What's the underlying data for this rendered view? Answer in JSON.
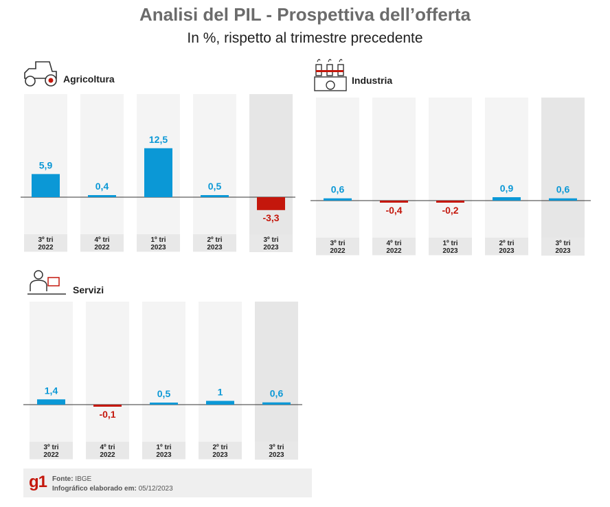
{
  "title": "Analisi del PIL - Prospettiva dell’offerta",
  "subtitle": "In %, rispetto al trimestre precedente",
  "colors": {
    "positive": "#0b98d6",
    "negative": "#c4170c",
    "column": "#f4f4f4",
    "column_highlight": "#e6e6e6",
    "tick_bg": "#e8e8e8"
  },
  "chart_data": [
    {
      "type": "bar",
      "name": "Agricoltura",
      "icon": "tractor-icon",
      "categories": [
        [
          "3º tri",
          "2022"
        ],
        [
          "4º tri",
          "2022"
        ],
        [
          "1º tri",
          "2023"
        ],
        [
          "2º tri",
          "2023"
        ],
        [
          "3º tri",
          "2023"
        ]
      ],
      "values": [
        5.9,
        0.4,
        12.5,
        0.5,
        -3.3
      ],
      "value_labels": [
        "5,9",
        "0,4",
        "12,5",
        "0,5",
        "-3,3"
      ],
      "highlight_index": 4
    },
    {
      "type": "bar",
      "name": "Industria",
      "icon": "factory-icon",
      "categories": [
        [
          "3º tri",
          "2022"
        ],
        [
          "4º tri",
          "2022"
        ],
        [
          "1º tri",
          "2023"
        ],
        [
          "2º tri",
          "2023"
        ],
        [
          "3º tri",
          "2023"
        ]
      ],
      "values": [
        0.6,
        -0.4,
        -0.2,
        0.9,
        0.6
      ],
      "value_labels": [
        "0,6",
        "-0,4",
        "-0,2",
        "0,9",
        "0,6"
      ],
      "highlight_index": 4
    },
    {
      "type": "bar",
      "name": "Servizi",
      "icon": "office-worker-icon",
      "categories": [
        [
          "3º tri",
          "2022"
        ],
        [
          "4º tri",
          "2022"
        ],
        [
          "1º tri",
          "2023"
        ],
        [
          "2º tri",
          "2023"
        ],
        [
          "3º tri",
          "2023"
        ]
      ],
      "values": [
        1.4,
        -0.1,
        0.5,
        1.0,
        0.6
      ],
      "value_labels": [
        "1,4",
        "-0,1",
        "0,5",
        "1",
        "0,6"
      ],
      "highlight_index": 4
    }
  ],
  "footer": {
    "logo": "g1",
    "source_label": "Fonte:",
    "source_value": "IBGE",
    "made_label": "Infográfico elaborado em:",
    "made_value": "05/12/2023"
  }
}
